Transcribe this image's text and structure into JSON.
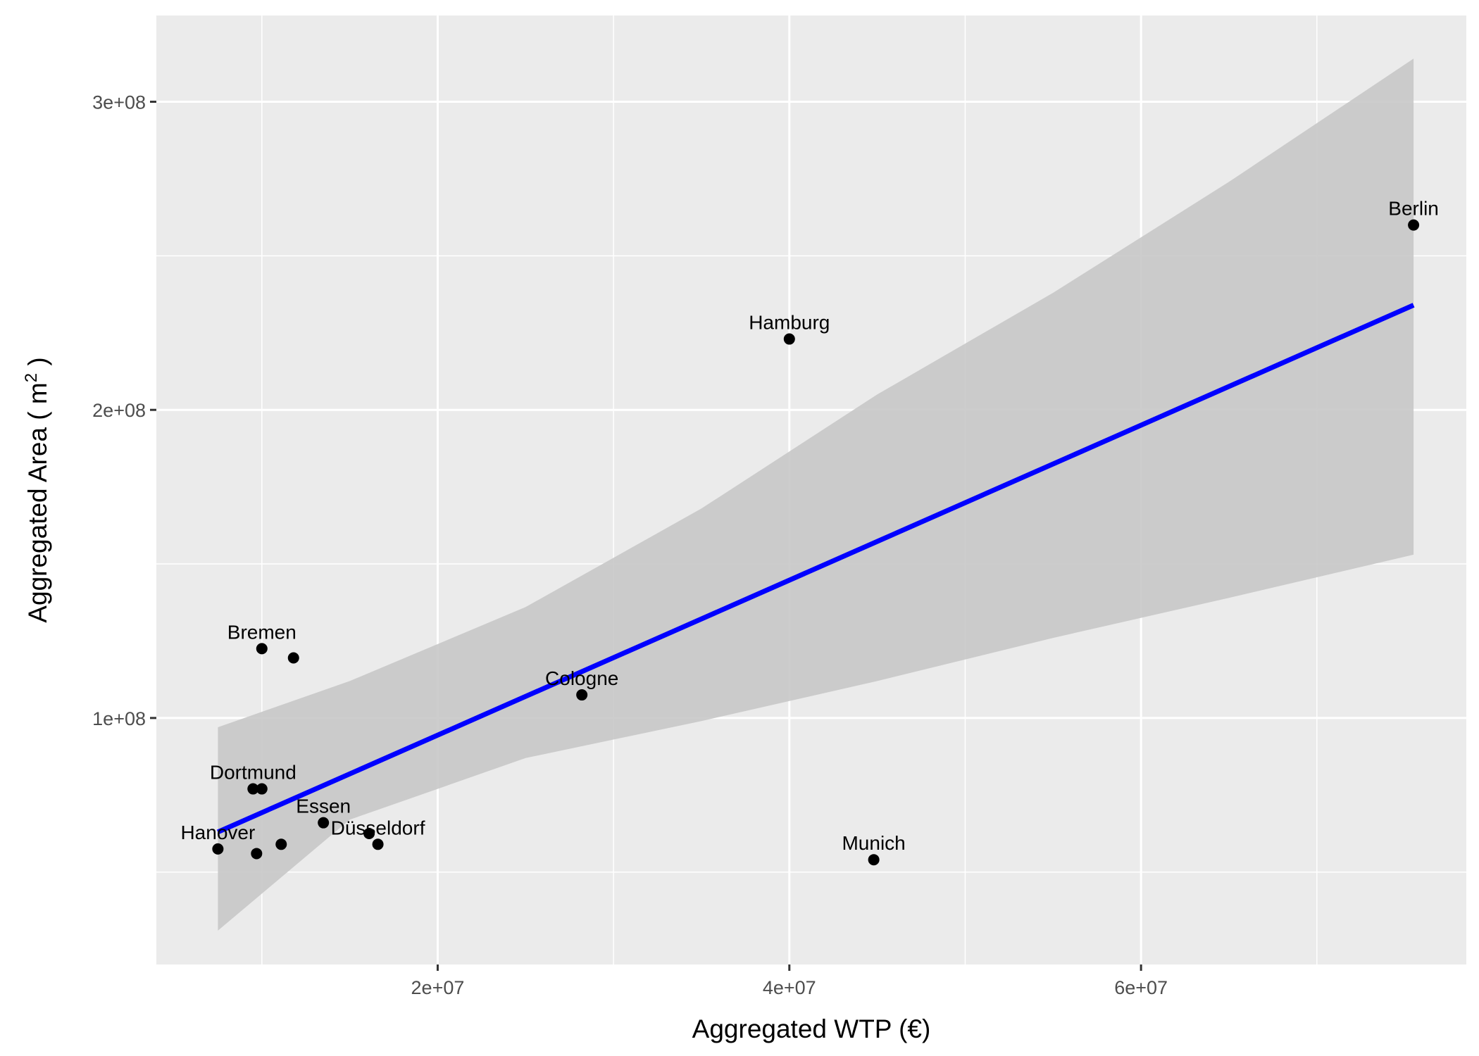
{
  "chart_data": {
    "type": "scatter",
    "title": "",
    "xlabel": "Aggregated WTP (€)",
    "ylabel_prefix": "Aggregated Area ( m",
    "ylabel_sup": "2",
    "ylabel_suffix": " )",
    "xlim": [
      4000000,
      78500000
    ],
    "ylim": [
      20000000,
      328000000
    ],
    "grid": true,
    "x_major_ticks": [
      20000000,
      40000000,
      60000000
    ],
    "x_major_labels": [
      "2e+07",
      "4e+07",
      "6e+07"
    ],
    "x_minor_ticks": [
      10000000,
      30000000,
      50000000,
      70000000
    ],
    "y_major_ticks": [
      100000000,
      200000000,
      300000000
    ],
    "y_major_labels": [
      "1e+08",
      "2e+08",
      "3e+08"
    ],
    "y_minor_ticks": [
      50000000,
      150000000,
      250000000
    ],
    "points": [
      {
        "x": 75500000,
        "y": 260000000,
        "label": "Berlin"
      },
      {
        "x": 40000000,
        "y": 223000000,
        "label": "Hamburg"
      },
      {
        "x": 44800000,
        "y": 54000000,
        "label": "Munich"
      },
      {
        "x": 28200000,
        "y": 107500000,
        "label": "Cologne"
      },
      {
        "x": 10000000,
        "y": 122500000,
        "label": "Bremen"
      },
      {
        "x": 11800000,
        "y": 119500000,
        "label": ""
      },
      {
        "x": 9500000,
        "y": 77000000,
        "label": "Dortmund"
      },
      {
        "x": 10000000,
        "y": 77000000,
        "label": ""
      },
      {
        "x": 13500000,
        "y": 66000000,
        "label": "Essen"
      },
      {
        "x": 16100000,
        "y": 62500000,
        "label": ""
      },
      {
        "x": 16600000,
        "y": 59000000,
        "label": "Düsseldorf"
      },
      {
        "x": 7500000,
        "y": 57500000,
        "label": "Hanover"
      },
      {
        "x": 9700000,
        "y": 56000000,
        "label": ""
      },
      {
        "x": 11100000,
        "y": 59000000,
        "label": ""
      }
    ],
    "fit": {
      "method": "lm",
      "x_range": [
        7500000,
        75500000
      ],
      "y_start": 63000000,
      "y_end": 234000000,
      "line_color": "#0000ff",
      "ci_band": [
        {
          "x": 7500000,
          "lower": 31000000,
          "upper": 97000000
        },
        {
          "x": 15000000,
          "lower": 67000000,
          "upper": 112000000
        },
        {
          "x": 25000000,
          "lower": 87000000,
          "upper": 136000000
        },
        {
          "x": 35000000,
          "lower": 99000000,
          "upper": 168000000
        },
        {
          "x": 45000000,
          "lower": 112000000,
          "upper": 205000000
        },
        {
          "x": 55000000,
          "lower": 126000000,
          "upper": 238000000
        },
        {
          "x": 65000000,
          "lower": 139000000,
          "upper": 274000000
        },
        {
          "x": 75500000,
          "lower": 153000000,
          "upper": 314000000
        }
      ]
    },
    "colors": {
      "panel": "#ebebeb",
      "grid": "#ffffff",
      "band": "#c8c8c8",
      "point": "#000000"
    }
  }
}
